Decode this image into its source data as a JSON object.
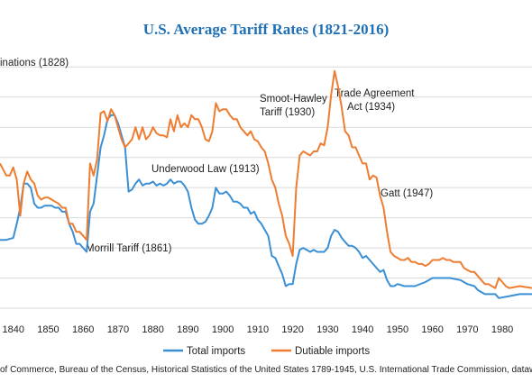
{
  "chart_data": {
    "type": "line",
    "title": "U.S. Average Tariff Rates (1821-2016)",
    "xlim": [
      1836.2,
      1988.5
    ],
    "ylim": [
      0,
      65
    ],
    "x_ticks": [
      1840,
      1850,
      1860,
      1870,
      1880,
      1890,
      1900,
      1910,
      1920,
      1930,
      1940,
      1950,
      1960,
      1970,
      1980
    ],
    "grid": true,
    "legend_position": "bottom",
    "series": [
      {
        "name": "Total imports",
        "color": "#3b8fd4",
        "points": [
          [
            1836.2,
            17
          ],
          [
            1838,
            17
          ],
          [
            1840,
            17.5
          ],
          [
            1841,
            21
          ],
          [
            1842,
            25
          ],
          [
            1843,
            31
          ],
          [
            1844,
            31
          ],
          [
            1845,
            30
          ],
          [
            1846,
            26
          ],
          [
            1847,
            25
          ],
          [
            1848,
            25
          ],
          [
            1849,
            25.5
          ],
          [
            1850,
            25.5
          ],
          [
            1851,
            25.5
          ],
          [
            1852,
            25
          ],
          [
            1853,
            25
          ],
          [
            1854,
            24
          ],
          [
            1855,
            24
          ],
          [
            1856,
            21
          ],
          [
            1857,
            19
          ],
          [
            1858,
            16
          ],
          [
            1859,
            16
          ],
          [
            1860,
            15
          ],
          [
            1861,
            14
          ],
          [
            1862,
            24
          ],
          [
            1863,
            26
          ],
          [
            1864,
            33
          ],
          [
            1865,
            40
          ],
          [
            1866,
            43
          ],
          [
            1867,
            47
          ],
          [
            1868,
            48
          ],
          [
            1869,
            48
          ],
          [
            1870,
            46
          ],
          [
            1871,
            43
          ],
          [
            1872,
            40
          ],
          [
            1873,
            29
          ],
          [
            1874,
            29.5
          ],
          [
            1875,
            31
          ],
          [
            1876,
            32
          ],
          [
            1877,
            30.5
          ],
          [
            1878,
            31
          ],
          [
            1879,
            31
          ],
          [
            1880,
            31.5
          ],
          [
            1881,
            30.5
          ],
          [
            1882,
            31
          ],
          [
            1883,
            30.5
          ],
          [
            1884,
            31
          ],
          [
            1885,
            32
          ],
          [
            1886,
            31
          ],
          [
            1887,
            31.5
          ],
          [
            1888,
            31.5
          ],
          [
            1889,
            30.5
          ],
          [
            1890,
            29
          ],
          [
            1891,
            25
          ],
          [
            1892,
            22
          ],
          [
            1893,
            21
          ],
          [
            1894,
            21
          ],
          [
            1895,
            21.5
          ],
          [
            1896,
            23
          ],
          [
            1897,
            25
          ],
          [
            1898,
            30
          ],
          [
            1899,
            28.5
          ],
          [
            1900,
            28.5
          ],
          [
            1901,
            29
          ],
          [
            1902,
            28
          ],
          [
            1903,
            26.5
          ],
          [
            1904,
            26.5
          ],
          [
            1905,
            26
          ],
          [
            1906,
            25
          ],
          [
            1907,
            25
          ],
          [
            1908,
            23.5
          ],
          [
            1909,
            24
          ],
          [
            1910,
            22
          ],
          [
            1911,
            21
          ],
          [
            1912,
            19.5
          ],
          [
            1913,
            18
          ],
          [
            1914,
            13
          ],
          [
            1915,
            12.5
          ],
          [
            1916,
            10.5
          ],
          [
            1917,
            8.5
          ],
          [
            1918,
            5.5
          ],
          [
            1919,
            6
          ],
          [
            1920,
            6
          ],
          [
            1921,
            11
          ],
          [
            1922,
            14.5
          ],
          [
            1923,
            15
          ],
          [
            1924,
            14.5
          ],
          [
            1925,
            14
          ],
          [
            1926,
            14.5
          ],
          [
            1927,
            14
          ],
          [
            1928,
            14
          ],
          [
            1929,
            14
          ],
          [
            1930,
            15
          ],
          [
            1931,
            18
          ],
          [
            1932,
            19.5
          ],
          [
            1933,
            19
          ],
          [
            1934,
            17.5
          ],
          [
            1935,
            16.5
          ],
          [
            1936,
            15.5
          ],
          [
            1937,
            15.5
          ],
          [
            1938,
            15
          ],
          [
            1939,
            14
          ],
          [
            1940,
            12.5
          ],
          [
            1941,
            13
          ],
          [
            1942,
            12
          ],
          [
            1943,
            11
          ],
          [
            1944,
            10
          ],
          [
            1945,
            9
          ],
          [
            1946,
            9.5
          ],
          [
            1947,
            7
          ],
          [
            1948,
            5.5
          ],
          [
            1949,
            5.5
          ],
          [
            1950,
            6
          ],
          [
            1952,
            5.5
          ],
          [
            1955,
            5.5
          ],
          [
            1958,
            6.5
          ],
          [
            1960,
            7.5
          ],
          [
            1965,
            7.5
          ],
          [
            1968,
            7
          ],
          [
            1970,
            6
          ],
          [
            1972,
            5.5
          ],
          [
            1973,
            4.5
          ],
          [
            1975,
            3.5
          ],
          [
            1978,
            3.5
          ],
          [
            1979,
            2.5
          ],
          [
            1982,
            3
          ],
          [
            1985,
            3.5
          ],
          [
            1988.5,
            3.5
          ]
        ]
      },
      {
        "name": "Dutiable imports",
        "color": "#ee7d31",
        "points": [
          [
            1836.2,
            36
          ],
          [
            1838,
            33
          ],
          [
            1839,
            33
          ],
          [
            1840,
            35
          ],
          [
            1841,
            32
          ],
          [
            1842,
            23
          ],
          [
            1843,
            31
          ],
          [
            1844,
            34
          ],
          [
            1845,
            32
          ],
          [
            1846,
            31
          ],
          [
            1847,
            28
          ],
          [
            1848,
            27
          ],
          [
            1849,
            27.5
          ],
          [
            1850,
            27.5
          ],
          [
            1851,
            27
          ],
          [
            1852,
            26.5
          ],
          [
            1853,
            26
          ],
          [
            1854,
            25
          ],
          [
            1855,
            25
          ],
          [
            1856,
            21
          ],
          [
            1857,
            21
          ],
          [
            1858,
            19
          ],
          [
            1859,
            19
          ],
          [
            1860,
            18
          ],
          [
            1861,
            17
          ],
          [
            1862,
            36
          ],
          [
            1863,
            33
          ],
          [
            1864,
            37
          ],
          [
            1865,
            48.5
          ],
          [
            1866,
            49
          ],
          [
            1867,
            46.5
          ],
          [
            1868,
            49.5
          ],
          [
            1869,
            48
          ],
          [
            1870,
            45
          ],
          [
            1871,
            42
          ],
          [
            1872,
            40
          ],
          [
            1873,
            41
          ],
          [
            1874,
            42
          ],
          [
            1875,
            45
          ],
          [
            1876,
            42
          ],
          [
            1877,
            45
          ],
          [
            1878,
            42
          ],
          [
            1879,
            43
          ],
          [
            1880,
            45
          ],
          [
            1881,
            43.5
          ],
          [
            1882,
            43
          ],
          [
            1883,
            43
          ],
          [
            1884,
            42.5
          ],
          [
            1885,
            47
          ],
          [
            1886,
            44
          ],
          [
            1887,
            48
          ],
          [
            1888,
            45
          ],
          [
            1889,
            46
          ],
          [
            1890,
            45
          ],
          [
            1891,
            48
          ],
          [
            1892,
            47
          ],
          [
            1893,
            47
          ],
          [
            1894,
            45
          ],
          [
            1895,
            42
          ],
          [
            1896,
            41.5
          ],
          [
            1897,
            44
          ],
          [
            1898,
            51
          ],
          [
            1899,
            49
          ],
          [
            1900,
            49.5
          ],
          [
            1901,
            49.5
          ],
          [
            1902,
            48
          ],
          [
            1903,
            47
          ],
          [
            1904,
            47
          ],
          [
            1905,
            45
          ],
          [
            1906,
            44
          ],
          [
            1907,
            43
          ],
          [
            1908,
            44
          ],
          [
            1909,
            42
          ],
          [
            1910,
            41.5
          ],
          [
            1911,
            40
          ],
          [
            1912,
            39
          ],
          [
            1913,
            36
          ],
          [
            1914,
            32
          ],
          [
            1915,
            30
          ],
          [
            1916,
            26
          ],
          [
            1917,
            23
          ],
          [
            1918,
            18
          ],
          [
            1919,
            16
          ],
          [
            1920,
            13
          ],
          [
            1921,
            30
          ],
          [
            1922,
            38
          ],
          [
            1923,
            39
          ],
          [
            1924,
            38.5
          ],
          [
            1925,
            38
          ],
          [
            1926,
            39
          ],
          [
            1927,
            39
          ],
          [
            1928,
            41
          ],
          [
            1929,
            40.5
          ],
          [
            1930,
            45
          ],
          [
            1931,
            53
          ],
          [
            1932,
            59
          ],
          [
            1933,
            55
          ],
          [
            1934,
            50
          ],
          [
            1935,
            44
          ],
          [
            1936,
            43
          ],
          [
            1937,
            40
          ],
          [
            1938,
            40
          ],
          [
            1939,
            38
          ],
          [
            1940,
            36
          ],
          [
            1941,
            36
          ],
          [
            1942,
            32
          ],
          [
            1943,
            33
          ],
          [
            1944,
            32.5
          ],
          [
            1945,
            28
          ],
          [
            1946,
            25
          ],
          [
            1947,
            19
          ],
          [
            1948,
            14
          ],
          [
            1949,
            13
          ],
          [
            1950,
            12.5
          ],
          [
            1951,
            12
          ],
          [
            1952,
            12
          ],
          [
            1953,
            12.5
          ],
          [
            1954,
            11.5
          ],
          [
            1955,
            11.5
          ],
          [
            1956,
            11
          ],
          [
            1957,
            11
          ],
          [
            1958,
            10.5
          ],
          [
            1959,
            11
          ],
          [
            1960,
            12
          ],
          [
            1961,
            12
          ],
          [
            1962,
            12
          ],
          [
            1963,
            12.5
          ],
          [
            1964,
            12
          ],
          [
            1965,
            12
          ],
          [
            1966,
            11.5
          ],
          [
            1967,
            11.5
          ],
          [
            1968,
            11.5
          ],
          [
            1969,
            10
          ],
          [
            1970,
            9.5
          ],
          [
            1971,
            9
          ],
          [
            1972,
            9
          ],
          [
            1973,
            8
          ],
          [
            1974,
            7
          ],
          [
            1975,
            6
          ],
          [
            1976,
            6
          ],
          [
            1977,
            5.5
          ],
          [
            1978,
            5
          ],
          [
            1979,
            7.5
          ],
          [
            1980,
            6.5
          ],
          [
            1981,
            5.5
          ],
          [
            1982,
            5
          ],
          [
            1985,
            5.5
          ],
          [
            1988.5,
            5
          ]
        ]
      }
    ],
    "annotations": [
      {
        "name": "annotation-tariff-of-abominations",
        "text": "inations (1828)",
        "x": 1828,
        "lines": [
          "inations (1828)"
        ]
      },
      {
        "name": "annotation-morrill-tariff",
        "text": "Morrill Tariff  (1861)",
        "x": 1861,
        "lines": [
          "Morrill Tariff  (1861)"
        ]
      },
      {
        "name": "annotation-underwood-law",
        "text": "Underwood  Law (1913)",
        "x": 1913,
        "lines": [
          "Underwood  Law (1913)"
        ]
      },
      {
        "name": "annotation-smoot-hawley",
        "text": "Smoot-Hawley Tariff (1930)",
        "x": 1930,
        "lines": [
          "Smoot-Hawley",
          "Tariff (1930)"
        ]
      },
      {
        "name": "annotation-trade-agreement-act",
        "text": "Trade Agreement Act (1934)",
        "x": 1934,
        "lines": [
          "Trade Agreement",
          "Act (1934)"
        ]
      },
      {
        "name": "annotation-gatt",
        "text": "Gatt (1947)",
        "x": 1947,
        "lines": [
          "Gatt (1947)"
        ]
      }
    ],
    "source": "of Commerce, Bureau of the Census, Historical Statistics of the United States 1789-1945, U.S. International Trade Commission, dataweb.u"
  }
}
